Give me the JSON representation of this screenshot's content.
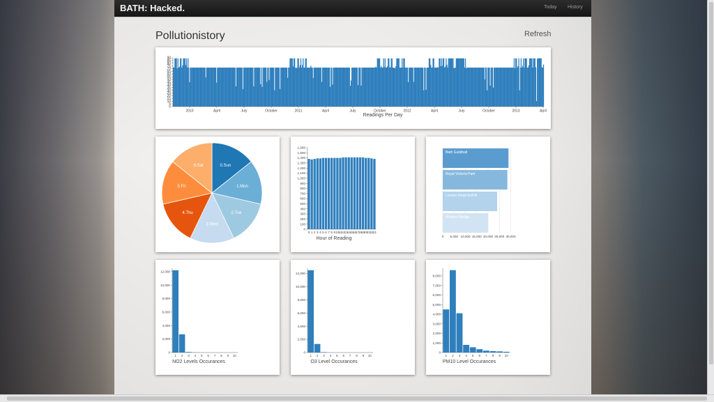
{
  "app": {
    "brand": "BATH: Hacked.",
    "nav": [
      "Today",
      "History"
    ]
  },
  "page": {
    "title": "Pollutionistory",
    "refresh": "Refresh"
  },
  "timeline": {
    "xlabel": "Readings Per Day",
    "yticks": [
      "0",
      "5",
      "10",
      "15",
      "20",
      "25",
      "30",
      "35",
      "40",
      "45",
      "50",
      "55",
      "60",
      "65",
      "70",
      "75",
      "80",
      "85",
      "90"
    ],
    "xticks": [
      "2010",
      "April",
      "July",
      "October",
      "2011",
      "April",
      "July",
      "October",
      "2012",
      "April",
      "July",
      "October",
      "2013",
      "April"
    ]
  },
  "pie": {
    "labels": [
      "0.Sun",
      "1.Mon",
      "2.Tue",
      "3.Wed",
      "4.Thu",
      "5.Fri",
      "6.Sat"
    ]
  },
  "hour_chart": {
    "xlabel": "Hour of Reading",
    "yticks": [
      "0",
      "100",
      "200",
      "300",
      "400",
      "500",
      "600",
      "700",
      "800",
      "900",
      "1,000",
      "1,100",
      "1,200",
      "1,300",
      "1,400",
      "1,500",
      "1,600"
    ]
  },
  "sites": {
    "labels": [
      "Bath Guildhall",
      "Royal Victoria Park",
      "London Road AURN",
      "Windsor Bridge"
    ],
    "xticks": [
      "0",
      "5,000",
      "10,000",
      "15,000",
      "20,000",
      "25,000",
      "30,000"
    ]
  },
  "no2": {
    "xlabel": "NO2 Levels Occurances",
    "yticks": [
      "0",
      "2,000",
      "4,000",
      "6,000",
      "8,000",
      "10,000",
      "12,000"
    ],
    "xticks": [
      "1",
      "2",
      "3",
      "4",
      "5",
      "6",
      "7",
      "8",
      "9",
      "10"
    ]
  },
  "o3": {
    "xlabel": "O3 Level Occurances",
    "yticks": [
      "0",
      "2,000",
      "4,000",
      "6,000",
      "8,000",
      "10,000",
      "12,000"
    ],
    "xticks": [
      "1",
      "2",
      "3",
      "4",
      "5",
      "6",
      "7",
      "8",
      "9",
      "10"
    ]
  },
  "pm10": {
    "xlabel": "PM10 Level Occurances",
    "yticks": [
      "0",
      "1,000",
      "2,000",
      "3,000",
      "4,000",
      "5,000",
      "6,000",
      "7,000",
      "8,000"
    ],
    "xticks": [
      "1",
      "2",
      "3",
      "4",
      "5",
      "6",
      "7",
      "8",
      "9",
      "10"
    ]
  },
  "chart_data": [
    {
      "type": "bar",
      "name": "timeline",
      "ylim": [
        0,
        90
      ],
      "bars": 480,
      "typical": 72,
      "peak": 89
    },
    {
      "type": "pie",
      "categories": [
        "0.Sun",
        "1.Mon",
        "2.Tue",
        "3.Wed",
        "4.Thu",
        "5.Fri",
        "6.Sat"
      ],
      "values": [
        14.3,
        14.3,
        14.3,
        14.3,
        14.3,
        14.3,
        14.3
      ],
      "colors": [
        "#1f77b4",
        "#6baed6",
        "#9ecae1",
        "#c6dbef",
        "#e6550d",
        "#fd8d3c",
        "#fdae6b"
      ]
    },
    {
      "type": "bar",
      "categories": [
        "0",
        "1",
        "2",
        "3",
        "4",
        "5",
        "6",
        "7",
        "8",
        "9",
        "10",
        "11",
        "12",
        "13",
        "14",
        "15",
        "16",
        "17",
        "18",
        "19",
        "20",
        "21",
        "22",
        "23"
      ],
      "values": [
        1380,
        1370,
        1380,
        1390,
        1390,
        1400,
        1400,
        1400,
        1400,
        1400,
        1400,
        1400,
        1410,
        1410,
        1410,
        1410,
        1410,
        1410,
        1410,
        1410,
        1400,
        1400,
        1390,
        1380
      ],
      "ylim": [
        0,
        1600
      ]
    },
    {
      "type": "bar",
      "orientation": "horizontal",
      "categories": [
        "Bath Guildhall",
        "Royal Victoria Park",
        "London Road AURN",
        "Windsor Bridge"
      ],
      "values": [
        29000,
        28500,
        24000,
        20000
      ],
      "xlim": [
        0,
        32000
      ]
    },
    {
      "type": "bar",
      "categories": [
        "1",
        "2",
        "3",
        "4",
        "5",
        "6",
        "7",
        "8",
        "9",
        "10"
      ],
      "values": [
        12200,
        2700,
        80,
        20,
        5,
        2,
        1,
        0,
        0,
        0
      ],
      "ylim": [
        0,
        12500
      ]
    },
    {
      "type": "bar",
      "categories": [
        "1",
        "2",
        "3",
        "4",
        "5",
        "6",
        "7",
        "8",
        "9",
        "10"
      ],
      "values": [
        12500,
        1300,
        60,
        10,
        2,
        1,
        0,
        0,
        0,
        0
      ],
      "ylim": [
        0,
        12800
      ]
    },
    {
      "type": "bar",
      "categories": [
        "1",
        "2",
        "3",
        "4",
        "5",
        "6",
        "7",
        "8",
        "9",
        "10"
      ],
      "values": [
        4500,
        8600,
        4100,
        800,
        550,
        350,
        200,
        150,
        120,
        80
      ],
      "ylim": [
        0,
        8800
      ]
    }
  ]
}
